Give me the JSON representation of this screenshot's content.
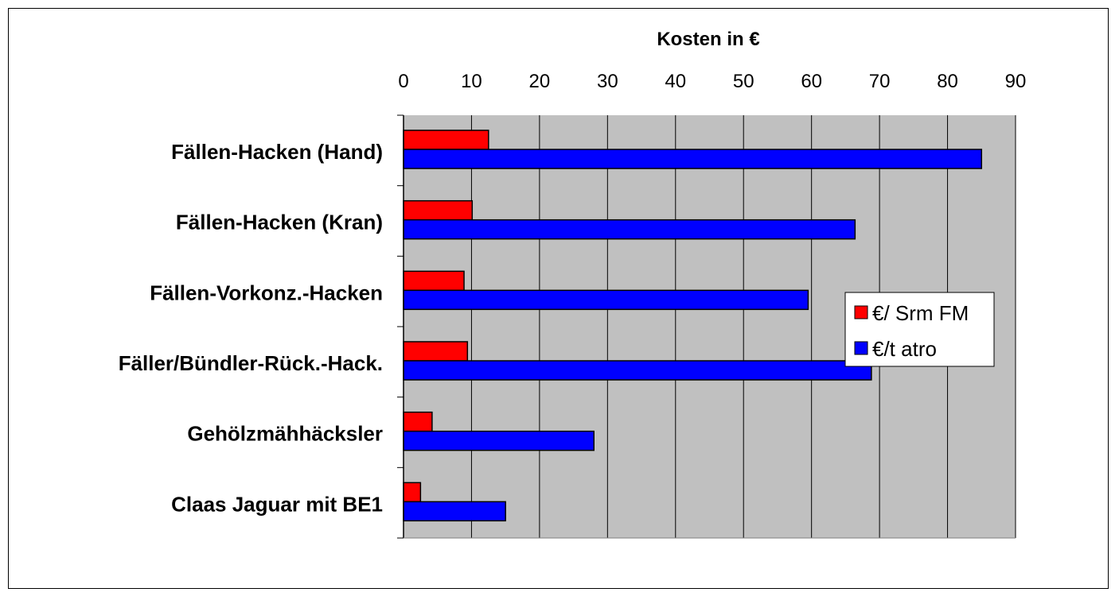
{
  "chart_data": {
    "type": "bar",
    "orientation": "horizontal",
    "axis_title": "Kosten in €",
    "xlim": [
      0,
      90
    ],
    "x_ticks": [
      0,
      10,
      20,
      30,
      40,
      50,
      60,
      70,
      80,
      90
    ],
    "grid": true,
    "legend_position": "right",
    "categories": [
      "Fällen-Hacken (Hand)",
      "Fällen-Hacken (Kran)",
      "Fällen-Vorkonz.-Hacken",
      "Fäller/Bündler-Rück.-Hack.",
      "Gehölzmähhäcksler",
      "Claas Jaguar mit BE1"
    ],
    "series": [
      {
        "name": "€/ Srm FM",
        "color": "#ff0000",
        "values": [
          12.5,
          10.1,
          8.9,
          9.4,
          4.2,
          2.5
        ]
      },
      {
        "name": "€/t atro",
        "color": "#0000ff",
        "values": [
          85.0,
          66.4,
          59.5,
          68.8,
          28.0,
          15.0
        ]
      }
    ],
    "colors": {
      "plot_background": "#c0c0c0",
      "grid": "#000000"
    }
  }
}
